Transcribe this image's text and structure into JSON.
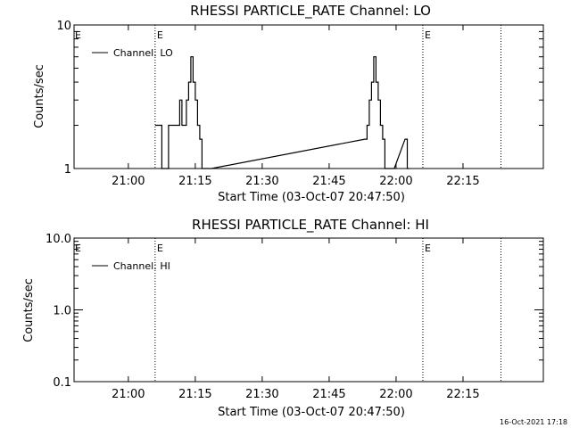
{
  "colors": {
    "background": "#ffffff",
    "foreground": "#000000"
  },
  "footer": {
    "timestamp": "16-Oct-2021 17:18"
  },
  "chart_data": [
    {
      "type": "line",
      "title": "RHESSI PARTICLE_RATE Channel: LO",
      "xlabel": "Start Time (03-Oct-07 20:47:50)",
      "ylabel": "Counts/sec",
      "yscale": "log",
      "xlim": [
        "20:47:50",
        "22:33:00"
      ],
      "ylim": [
        1,
        10
      ],
      "xticks": [
        "21:00",
        "21:15",
        "21:30",
        "21:45",
        "22:00",
        "22:15"
      ],
      "yticks": [
        "1",
        "10"
      ],
      "legend": {
        "position": "top-left"
      },
      "markers": [
        {
          "time": "21:06:00",
          "label": "E"
        },
        {
          "time": "22:06:00",
          "label": "E"
        },
        {
          "time": "22:23:30",
          "label": ""
        }
      ],
      "series": [
        {
          "name": "Channel: LO",
          "x": [
            "21:06:00",
            "21:07:30",
            "21:09:00",
            "21:10:30",
            "21:11:30",
            "21:12:00",
            "21:12:30",
            "21:13:00",
            "21:13:30",
            "21:14:00",
            "21:14:30",
            "21:15:00",
            "21:15:30",
            "21:16:00",
            "21:16:30",
            "21:17:00",
            "21:53:00",
            "21:53:30",
            "21:54:00",
            "21:54:30",
            "21:55:00",
            "21:55:30",
            "21:56:00",
            "21:56:30",
            "21:57:00",
            "21:57:30",
            "21:58:00",
            "22:02:00",
            "22:02:30"
          ],
          "values": [
            2,
            1,
            2,
            2,
            3,
            2,
            2,
            3,
            4,
            6,
            4,
            3,
            2,
            1.6,
            1,
            1,
            1.6,
            2,
            3,
            4,
            6,
            4,
            3,
            2,
            1.6,
            1,
            1,
            1.6,
            1
          ]
        }
      ]
    },
    {
      "type": "line",
      "title": "RHESSI PARTICLE_RATE Channel: HI",
      "xlabel": "Start Time (03-Oct-07 20:47:50)",
      "ylabel": "Counts/sec",
      "yscale": "log",
      "xlim": [
        "20:47:50",
        "22:33:00"
      ],
      "ylim": [
        0.1,
        10
      ],
      "xticks": [
        "21:00",
        "21:15",
        "21:30",
        "21:45",
        "22:00",
        "22:15"
      ],
      "yticks": [
        "0.1",
        "1.0",
        "10.0"
      ],
      "legend": {
        "position": "top-left"
      },
      "markers": [
        {
          "time": "21:06:00",
          "label": "E"
        },
        {
          "time": "22:06:00",
          "label": "E"
        },
        {
          "time": "22:23:30",
          "label": ""
        }
      ],
      "series": [
        {
          "name": "Channel: HI",
          "x": [],
          "values": []
        }
      ]
    }
  ]
}
